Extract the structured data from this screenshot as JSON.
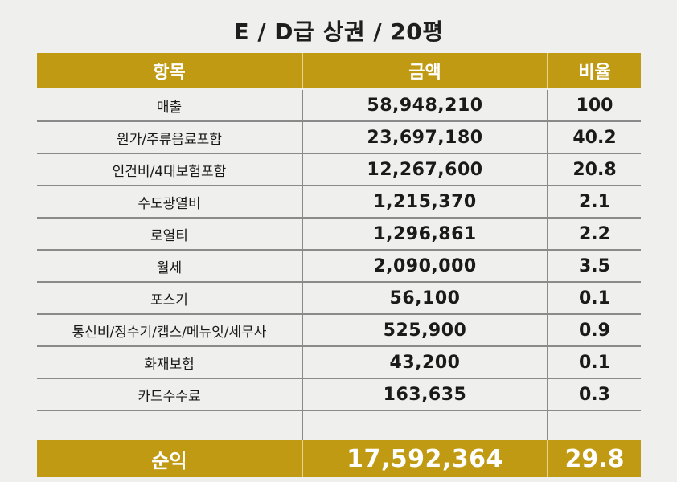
{
  "title": "E / D급 상권 / 20평",
  "colors": {
    "header_bg": "#c09a12",
    "grid": "#8a8a8a",
    "background": "#efefed"
  },
  "header": {
    "item": "항목",
    "amount": "금액",
    "ratio": "비율"
  },
  "rows": [
    {
      "item": "매출",
      "amount": "58,948,210",
      "ratio": "100"
    },
    {
      "item": "원가/주류음료포함",
      "amount": "23,697,180",
      "ratio": "40.2"
    },
    {
      "item": "인건비/4대보험포함",
      "amount": "12,267,600",
      "ratio": "20.8"
    },
    {
      "item": "수도광열비",
      "amount": "1,215,370",
      "ratio": "2.1"
    },
    {
      "item": "로열티",
      "amount": "1,296,861",
      "ratio": "2.2"
    },
    {
      "item": "월세",
      "amount": "2,090,000",
      "ratio": "3.5"
    },
    {
      "item": "포스기",
      "amount": "56,100",
      "ratio": "0.1"
    },
    {
      "item": "통신비/정수기/캡스/메뉴잇/세무사",
      "amount": "525,900",
      "ratio": "0.9"
    },
    {
      "item": "화재보험",
      "amount": "43,200",
      "ratio": "0.1"
    },
    {
      "item": "카드수수료",
      "amount": "163,635",
      "ratio": "0.3"
    }
  ],
  "total": {
    "item": "순익",
    "amount": "17,592,364",
    "ratio": "29.8"
  }
}
